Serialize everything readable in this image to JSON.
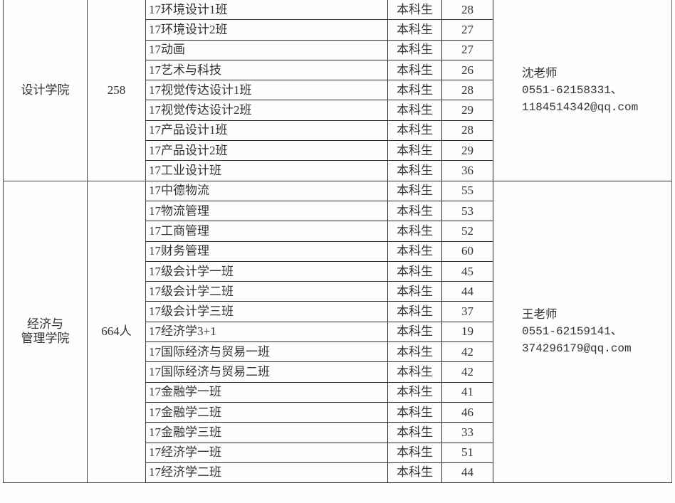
{
  "colleges": [
    {
      "name": "设计学院",
      "total": "258",
      "contact": {
        "name": "沈老师",
        "phone": "0551-62158331、",
        "email": "1184514342@qq.com"
      },
      "classes": [
        {
          "name": "17环境设计1班",
          "type": "本科生",
          "count": "28"
        },
        {
          "name": "17环境设计2班",
          "type": "本科生",
          "count": "27"
        },
        {
          "name": "17动画",
          "type": "本科生",
          "count": "27"
        },
        {
          "name": "17艺术与科技",
          "type": "本科生",
          "count": "26"
        },
        {
          "name": "17视觉传达设计1班",
          "type": "本科生",
          "count": "28"
        },
        {
          "name": "17视觉传达设计2班",
          "type": "本科生",
          "count": "29"
        },
        {
          "name": "17产品设计1班",
          "type": "本科生",
          "count": "28"
        },
        {
          "name": "17产品设计2班",
          "type": "本科生",
          "count": "29"
        },
        {
          "name": "17工业设计班",
          "type": "本科生",
          "count": "36"
        }
      ]
    },
    {
      "name": "经济与管理学院",
      "name_lines": [
        "经济与",
        "管理学院"
      ],
      "total": "664人",
      "contact": {
        "name": "王老师",
        "phone": "0551-62159141、",
        "email": "374296179@qq.com"
      },
      "classes": [
        {
          "name": "17中德物流",
          "type": "本科生",
          "count": "55"
        },
        {
          "name": "17物流管理",
          "type": "本科生",
          "count": "53"
        },
        {
          "name": "17工商管理",
          "type": "本科生",
          "count": "52"
        },
        {
          "name": "17财务管理",
          "type": "本科生",
          "count": "60"
        },
        {
          "name": "17级会计学一班",
          "type": "本科生",
          "count": "45"
        },
        {
          "name": "17级会计学二班",
          "type": "本科生",
          "count": "44"
        },
        {
          "name": "17级会计学三班",
          "type": "本科生",
          "count": "37"
        },
        {
          "name": "17经济学3+1",
          "type": "本科生",
          "count": "19"
        },
        {
          "name": "17国际经济与贸易一班",
          "type": "本科生",
          "count": "42"
        },
        {
          "name": "17国际经济与贸易二班",
          "type": "本科生",
          "count": "42"
        },
        {
          "name": "17金融学一班",
          "type": "本科生",
          "count": "41"
        },
        {
          "name": "17金融学二班",
          "type": "本科生",
          "count": "46"
        },
        {
          "name": "17金融学三班",
          "type": "本科生",
          "count": "33"
        },
        {
          "name": "17经济学一班",
          "type": "本科生",
          "count": "51"
        },
        {
          "name": "17经济学二班",
          "type": "本科生",
          "count": "44"
        }
      ]
    }
  ]
}
